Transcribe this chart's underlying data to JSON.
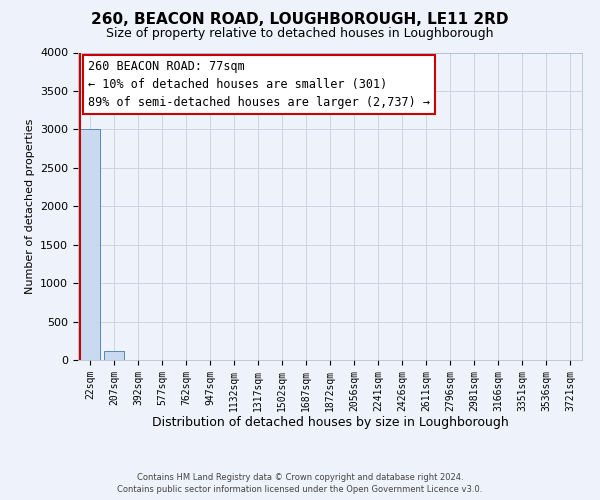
{
  "title": "260, BEACON ROAD, LOUGHBOROUGH, LE11 2RD",
  "subtitle": "Size of property relative to detached houses in Loughborough",
  "xlabel": "Distribution of detached houses by size in Loughborough",
  "ylabel": "Number of detached properties",
  "bar_labels": [
    "22sqm",
    "207sqm",
    "392sqm",
    "577sqm",
    "762sqm",
    "947sqm",
    "1132sqm",
    "1317sqm",
    "1502sqm",
    "1687sqm",
    "1872sqm",
    "2056sqm",
    "2241sqm",
    "2426sqm",
    "2611sqm",
    "2796sqm",
    "2981sqm",
    "3166sqm",
    "3351sqm",
    "3536sqm",
    "3721sqm"
  ],
  "bar_heights": [
    3000,
    120,
    0,
    0,
    0,
    0,
    0,
    0,
    0,
    0,
    0,
    0,
    0,
    0,
    0,
    0,
    0,
    0,
    0,
    0,
    0
  ],
  "bar_color": "#c8d9f0",
  "bar_edge_color": "#5588bb",
  "highlight_line_color": "#cc0000",
  "ylim": [
    0,
    4000
  ],
  "yticks": [
    0,
    500,
    1000,
    1500,
    2000,
    2500,
    3000,
    3500,
    4000
  ],
  "annotation_title": "260 BEACON ROAD: 77sqm",
  "annotation_line1": "← 10% of detached houses are smaller (301)",
  "annotation_line2": "89% of semi-detached houses are larger (2,737) →",
  "annotation_box_facecolor": "#ffffff",
  "annotation_box_edgecolor": "#cc0000",
  "footer1": "Contains HM Land Registry data © Crown copyright and database right 2024.",
  "footer2": "Contains public sector information licensed under the Open Government Licence v3.0.",
  "bg_color": "#eef2fa",
  "grid_color": "#c8cfe0",
  "title_fontsize": 11,
  "subtitle_fontsize": 9,
  "ylabel_fontsize": 8,
  "xlabel_fontsize": 9,
  "ytick_fontsize": 8,
  "xtick_fontsize": 7,
  "annotation_fontsize": 8.5,
  "footer_fontsize": 6
}
